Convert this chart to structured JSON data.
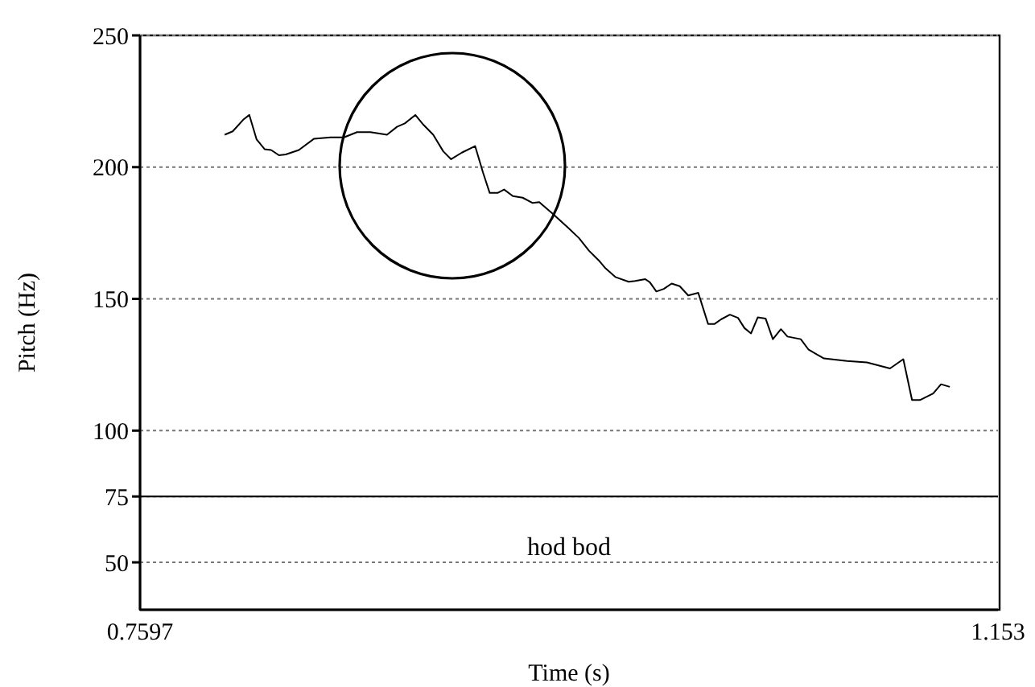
{
  "chart_data": {
    "type": "line",
    "xlabel": "Time (s)",
    "ylabel": "Pitch (Hz)",
    "xlim": [
      0.7597,
      1.153
    ],
    "xticks": [
      0.7597,
      1.153
    ],
    "ylim": [
      32,
      250
    ],
    "yticks": [
      50,
      75,
      100,
      150,
      200,
      250
    ],
    "grid": "y",
    "marker": "none",
    "line_style": "solid",
    "tick_labels": true,
    "ref_lines": [
      {
        "axis": "y",
        "value": 75,
        "line_style": "solid",
        "color": "#000000"
      }
    ],
    "annotations": [
      "hod bod"
    ],
    "series": [
      {
        "color": "#000000",
        "x": [
          0.7985,
          0.8022,
          0.807,
          0.8098,
          0.8131,
          0.8168,
          0.8198,
          0.8234,
          0.8265,
          0.8325,
          0.8395,
          0.8471,
          0.8532,
          0.8592,
          0.8653,
          0.8729,
          0.8775,
          0.8811,
          0.8859,
          0.8896,
          0.8941,
          0.8987,
          0.9023,
          0.9072,
          0.9133,
          0.9169,
          0.92,
          0.9236,
          0.9266,
          0.9306,
          0.9351,
          0.9397,
          0.9427,
          0.9488,
          0.9558,
          0.9609,
          0.9655,
          0.97,
          0.9731,
          0.9776,
          0.9837,
          0.9867,
          0.9913,
          0.9934,
          0.9964,
          0.9998,
          1.0034,
          1.0071,
          1.011,
          1.0156,
          1.0201,
          1.0231,
          1.0262,
          1.0301,
          1.0338,
          1.0368,
          1.0398,
          1.0429,
          1.0465,
          1.0498,
          1.0535,
          1.0565,
          1.0626,
          1.0662,
          1.0732,
          1.0838,
          1.0929,
          1.1035,
          1.1096,
          1.1136,
          1.1172,
          1.1233,
          1.1269,
          1.1309
        ],
        "values": [
          212.3,
          213.6,
          218,
          219.8,
          210.6,
          206.8,
          206.5,
          204.5,
          204.8,
          206.5,
          210.8,
          211.3,
          211.3,
          213.3,
          213.3,
          212.3,
          215.3,
          216.6,
          219.8,
          216.1,
          212.3,
          206,
          203,
          205.5,
          208,
          198,
          190.2,
          190.2,
          191.5,
          189,
          188.4,
          186.4,
          186.7,
          182.4,
          177.1,
          173.1,
          168.3,
          164.6,
          161.6,
          158.3,
          156.5,
          156.8,
          157.5,
          156.3,
          152.8,
          153.8,
          155.8,
          154.8,
          151.3,
          152.3,
          140.5,
          140.5,
          142.3,
          144,
          142.8,
          138.9,
          136.9,
          143,
          142.5,
          134.7,
          138.5,
          135.7,
          134.7,
          130.7,
          127.4,
          126.4,
          125.9,
          123.6,
          127.1,
          111.6,
          111.6,
          114.1,
          117.6,
          116.6
        ]
      }
    ]
  }
}
